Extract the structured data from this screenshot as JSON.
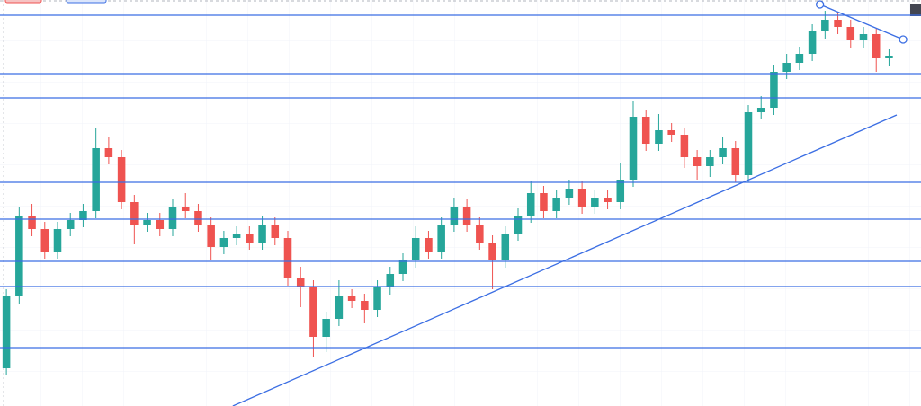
{
  "chart_data": {
    "type": "candlestick",
    "xlim": [
      0,
      72
    ],
    "ylim": [
      0,
      452
    ],
    "grid": true,
    "up_color": "#26a69a",
    "down_color": "#ef5350",
    "line_color": "#3b6ee3",
    "open": [
      42,
      122,
      212,
      197,
      172,
      197,
      207,
      217,
      287,
      277,
      227,
      202,
      207,
      197,
      222,
      217,
      202,
      177,
      187,
      192,
      182,
      202,
      187,
      142,
      132,
      77,
      97,
      122,
      117,
      107,
      132,
      147,
      162,
      187,
      172,
      202,
      222,
      202,
      182,
      162,
      192,
      212,
      237,
      217,
      232,
      242,
      222,
      232,
      227,
      252,
      322,
      292,
      307,
      302,
      277,
      267,
      277,
      287,
      257,
      327,
      332,
      372,
      382,
      392,
      417,
      430,
      422,
      407,
      414,
      387
    ],
    "high": [
      130,
      222,
      225,
      205,
      205,
      215,
      225,
      310,
      300,
      285,
      235,
      215,
      215,
      230,
      237,
      225,
      210,
      195,
      200,
      200,
      212,
      210,
      195,
      155,
      140,
      105,
      140,
      130,
      125,
      140,
      155,
      170,
      200,
      195,
      210,
      232,
      230,
      210,
      190,
      200,
      220,
      250,
      245,
      240,
      252,
      250,
      240,
      240,
      270,
      340,
      330,
      325,
      315,
      310,
      285,
      285,
      300,
      295,
      335,
      345,
      380,
      392,
      400,
      425,
      440,
      438,
      430,
      422,
      420,
      398
    ],
    "low": [
      34,
      114,
      189,
      164,
      164,
      189,
      199,
      209,
      269,
      219,
      180,
      194,
      189,
      189,
      209,
      194,
      162,
      169,
      179,
      174,
      174,
      179,
      134,
      110,
      55,
      60,
      89,
      109,
      92,
      99,
      124,
      139,
      154,
      164,
      164,
      194,
      194,
      174,
      130,
      154,
      184,
      204,
      209,
      209,
      224,
      214,
      214,
      219,
      219,
      244,
      284,
      284,
      294,
      265,
      252,
      255,
      269,
      249,
      249,
      319,
      324,
      364,
      374,
      384,
      409,
      414,
      399,
      399,
      372,
      379
    ],
    "close": [
      122,
      212,
      197,
      172,
      197,
      207,
      217,
      287,
      277,
      227,
      202,
      207,
      197,
      222,
      217,
      202,
      177,
      187,
      192,
      182,
      202,
      187,
      142,
      132,
      77,
      97,
      122,
      117,
      107,
      132,
      147,
      162,
      187,
      172,
      202,
      222,
      202,
      182,
      162,
      192,
      212,
      237,
      217,
      232,
      242,
      222,
      232,
      227,
      252,
      322,
      292,
      307,
      302,
      277,
      267,
      277,
      287,
      257,
      327,
      332,
      372,
      382,
      392,
      417,
      430,
      422,
      407,
      414,
      387,
      390
    ],
    "levels": [
      435,
      370,
      343,
      249,
      208,
      161,
      133,
      65
    ],
    "trendlines": [
      {
        "x": [
          18.2,
          70.1
        ],
        "y": [
          0,
          324
        ]
      },
      {
        "x": [
          64.1,
          70.6
        ],
        "y": [
          447,
          408
        ]
      }
    ]
  }
}
